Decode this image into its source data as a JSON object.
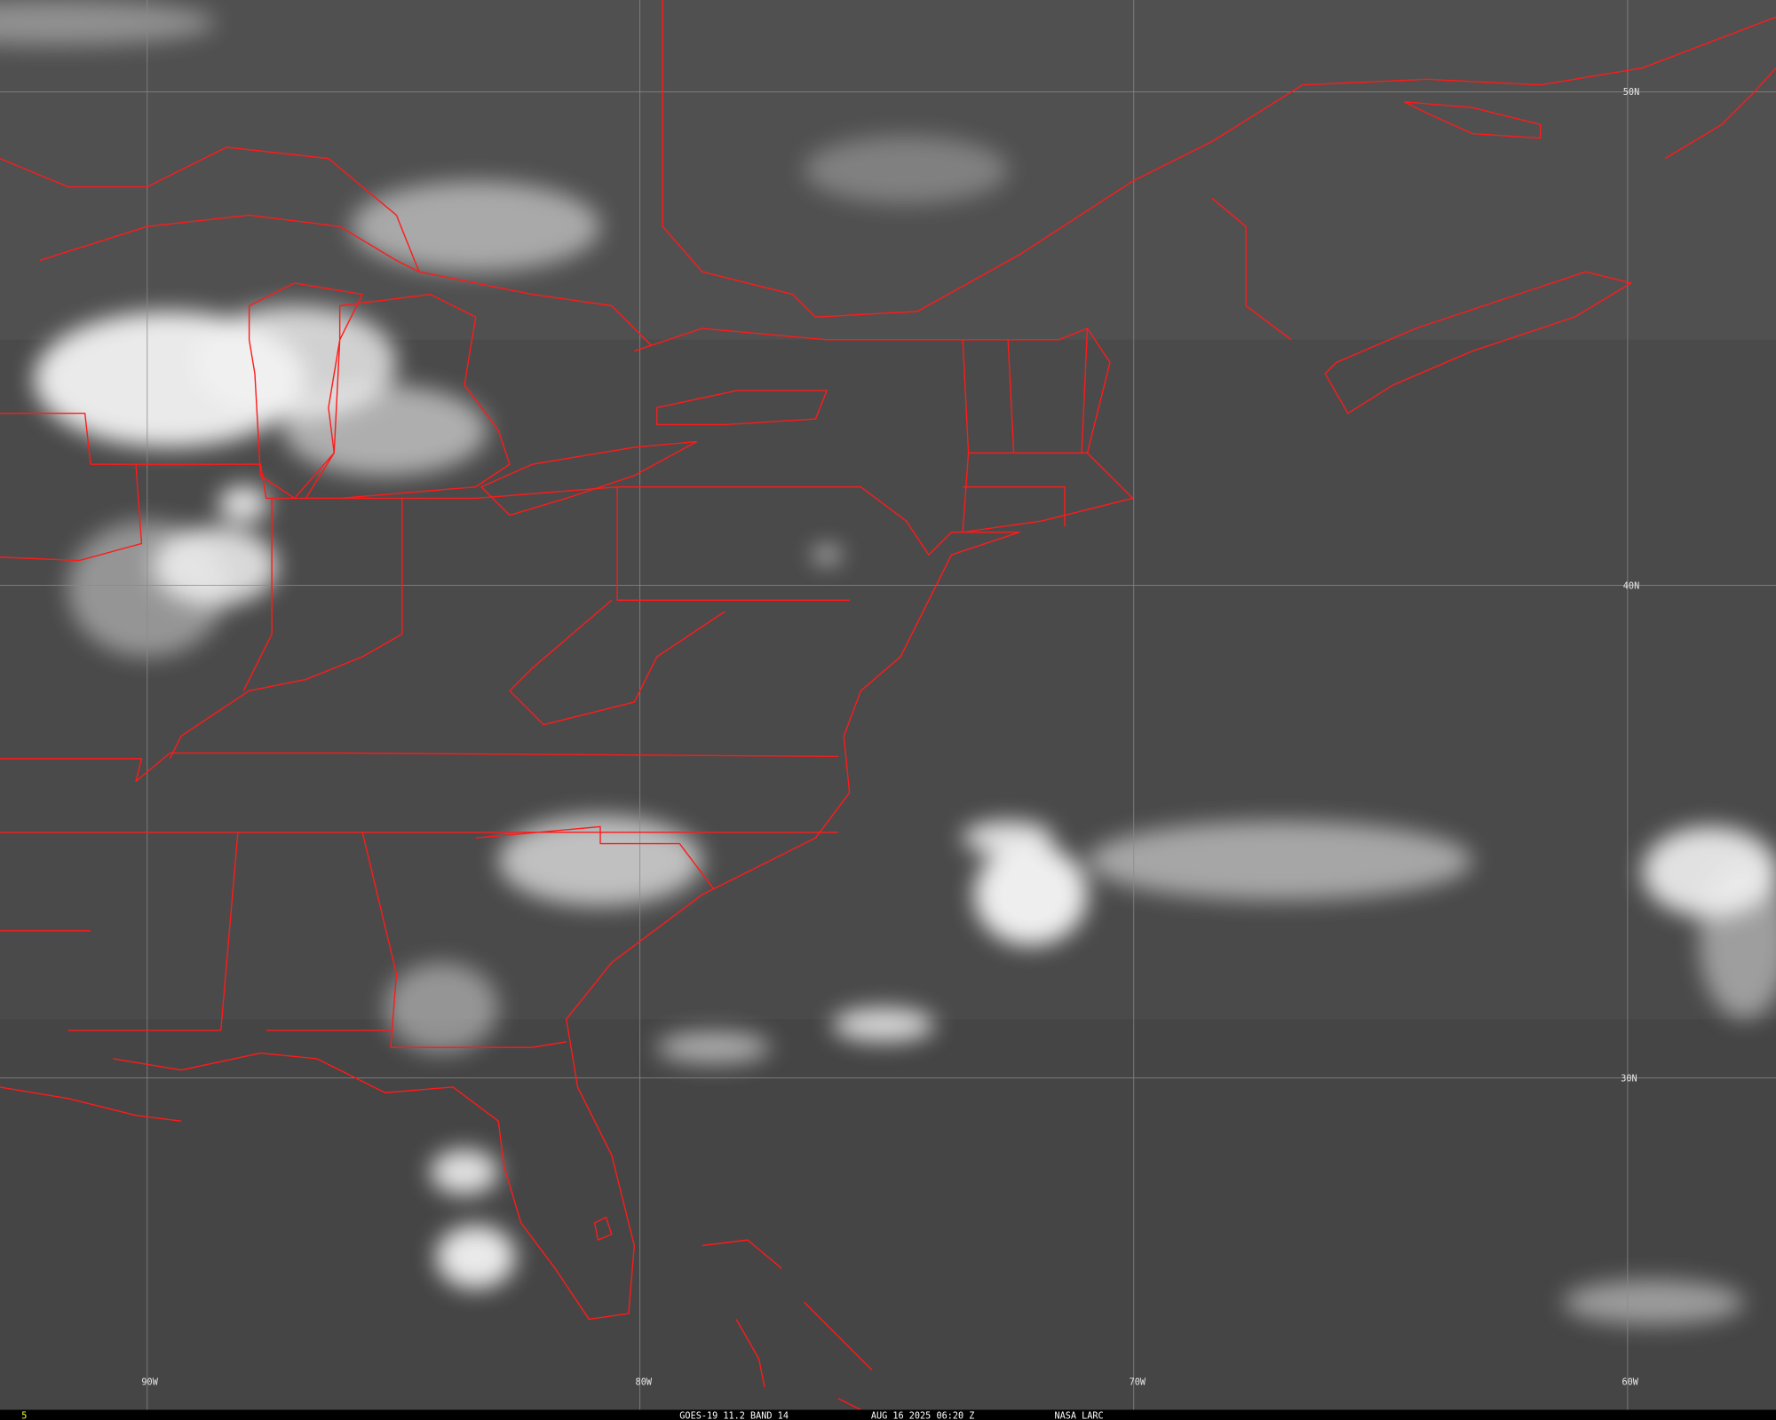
{
  "satellite": "GOES-19",
  "caption": {
    "frame_number": "5",
    "product": "GOES-19 11.2 BAND 14",
    "datetime": "AUG 16 2025 06:20 Z",
    "source": "NASA LARC"
  },
  "latitude_labels": [
    "50N",
    "40N",
    "30N"
  ],
  "longitude_labels": [
    "90W",
    "80W",
    "70W",
    "60W"
  ],
  "colors": {
    "boundaries": "#ff1a1a",
    "frame_number": "#ffff33",
    "caption_text": "#ffffff",
    "caption_bar": "#000000",
    "background": "#4a4a4a"
  }
}
